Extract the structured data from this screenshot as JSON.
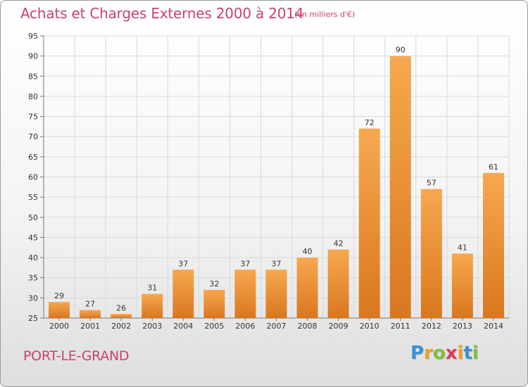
{
  "header": {
    "title": "Achats et Charges Externes 2000 à 2014",
    "subtitle": "(en milliers d'€)"
  },
  "footer": {
    "city": "PORT-LE-GRAND",
    "logo_letters": [
      "P",
      "r",
      "o",
      "x",
      "i",
      "t",
      "i"
    ],
    "logo_colors": [
      "#3a8fd6",
      "#f0a020",
      "#7fbf3a",
      "#e23b5a",
      "#f0a020",
      "#3a8fd6",
      "#7fbf3a"
    ]
  },
  "chart_data": {
    "type": "bar",
    "categories": [
      "2000",
      "2001",
      "2002",
      "2003",
      "2004",
      "2005",
      "2006",
      "2007",
      "2008",
      "2009",
      "2010",
      "2011",
      "2012",
      "2013",
      "2014"
    ],
    "values": [
      29,
      27,
      26,
      31,
      37,
      32,
      37,
      37,
      40,
      42,
      72,
      90,
      57,
      41,
      61
    ],
    "title": "Achats et Charges Externes 2000 à 2014",
    "subtitle": "(en milliers d'€)",
    "xlabel": "",
    "ylabel": "",
    "ylim": [
      25,
      95
    ],
    "yticks": [
      25,
      30,
      35,
      40,
      45,
      50,
      55,
      60,
      65,
      70,
      75,
      80,
      85,
      90,
      95
    ],
    "grid": true,
    "bar_color_light": "#f7a84f",
    "bar_color_dark": "#d9771f",
    "grid_color": "#d9d9d9"
  }
}
